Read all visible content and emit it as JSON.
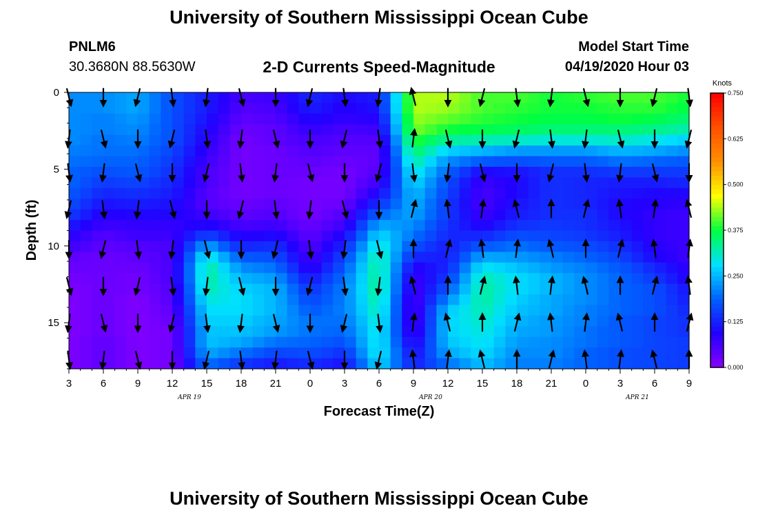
{
  "header": {
    "title_top": "University of Southern Mississippi Ocean Cube",
    "station_id": "PNLM6",
    "station_coords": "30.3680N 88.5630W",
    "plot_title": "2-D Currents Speed-Magnitude",
    "model_label": "Model Start Time",
    "model_time": "04/19/2020 Hour 03",
    "title_bottom": "University of Southern Mississippi Ocean Cube"
  },
  "chart_data": {
    "type": "heatmap",
    "title": "2-D Currents Speed-Magnitude",
    "xlabel": "Forecast Time(Z)",
    "ylabel": "Depth (ft)",
    "x_tick_labels": [
      "3",
      "6",
      "9",
      "12",
      "15",
      "18",
      "21",
      "0",
      "3",
      "6",
      "9",
      "12",
      "15",
      "18",
      "21",
      "0",
      "3",
      "6",
      "9"
    ],
    "date_labels": [
      {
        "text": "APR 19",
        "at_tick": 3.5
      },
      {
        "text": "APR 20",
        "at_tick": 10.5
      },
      {
        "text": "APR 21",
        "at_tick": 16.5
      }
    ],
    "y_ticks": [
      0,
      5,
      10,
      15
    ],
    "ylim": [
      0,
      18
    ],
    "y_inverted": true,
    "x_range_hours": [
      0,
      54
    ],
    "colorbar": {
      "label": "Knots",
      "ticks": [
        "0.000",
        "0.125",
        "0.250",
        "0.375",
        "0.500",
        "0.625",
        "0.750"
      ],
      "range": [
        0,
        0.75
      ],
      "colors": [
        "#8a00ff",
        "#2200ff",
        "#0060ff",
        "#00e0ff",
        "#00ff40",
        "#ffff00",
        "#ff9000",
        "#ff5000",
        "#ff0000"
      ]
    },
    "depths_ft": [
      0.4,
      1.1,
      1.8,
      2.5,
      3.2,
      3.9,
      4.6,
      5.3,
      6.0,
      6.7,
      7.4,
      8.1,
      8.8,
      9.5,
      10.2,
      10.9,
      11.6,
      12.3,
      13.0,
      13.7,
      14.4,
      15.1,
      15.8,
      16.5,
      17.2,
      17.9
    ],
    "profile_hours": [
      0,
      3,
      6,
      9,
      12,
      15,
      18,
      21,
      24,
      27,
      30,
      33,
      36,
      39,
      42,
      45,
      48,
      51,
      54
    ],
    "profiles": [
      [
        0.22,
        0.22,
        0.22,
        0.22,
        0.22,
        0.21,
        0.2,
        0.19,
        0.19,
        0.18,
        0.17,
        0.15,
        0.12,
        0.09,
        0.07,
        0.04,
        0.03,
        0.02,
        0.01,
        0.01,
        0.01,
        0.01,
        0.01,
        0.01,
        0.01,
        0.01
      ],
      [
        0.22,
        0.22,
        0.21,
        0.21,
        0.2,
        0.2,
        0.19,
        0.17,
        0.15,
        0.13,
        0.11,
        0.09,
        0.07,
        0.05,
        0.04,
        0.03,
        0.03,
        0.03,
        0.03,
        0.03,
        0.03,
        0.03,
        0.03,
        0.04,
        0.04,
        0.04
      ],
      [
        0.24,
        0.24,
        0.23,
        0.22,
        0.21,
        0.2,
        0.19,
        0.18,
        0.16,
        0.14,
        0.12,
        0.1,
        0.08,
        0.07,
        0.05,
        0.04,
        0.03,
        0.02,
        0.02,
        0.01,
        0.01,
        0.01,
        0.01,
        0.01,
        0.01,
        0.01
      ],
      [
        0.17,
        0.17,
        0.17,
        0.17,
        0.17,
        0.16,
        0.15,
        0.14,
        0.13,
        0.12,
        0.11,
        0.1,
        0.08,
        0.07,
        0.06,
        0.06,
        0.06,
        0.06,
        0.05,
        0.05,
        0.04,
        0.03,
        0.02,
        0.02,
        0.02,
        0.02
      ],
      [
        0.12,
        0.12,
        0.11,
        0.1,
        0.09,
        0.08,
        0.07,
        0.06,
        0.06,
        0.05,
        0.05,
        0.07,
        0.1,
        0.16,
        0.24,
        0.3,
        0.33,
        0.33,
        0.32,
        0.3,
        0.28,
        0.27,
        0.26,
        0.26,
        0.24,
        0.2
      ],
      [
        0.06,
        0.05,
        0.04,
        0.03,
        0.02,
        0.02,
        0.02,
        0.02,
        0.02,
        0.02,
        0.03,
        0.04,
        0.06,
        0.09,
        0.13,
        0.18,
        0.22,
        0.25,
        0.27,
        0.28,
        0.28,
        0.27,
        0.26,
        0.24,
        0.2,
        0.15
      ],
      [
        0.07,
        0.06,
        0.05,
        0.04,
        0.04,
        0.03,
        0.03,
        0.03,
        0.03,
        0.03,
        0.04,
        0.05,
        0.07,
        0.1,
        0.14,
        0.17,
        0.2,
        0.23,
        0.25,
        0.25,
        0.25,
        0.24,
        0.23,
        0.2,
        0.16,
        0.12
      ],
      [
        0.13,
        0.12,
        0.1,
        0.08,
        0.06,
        0.05,
        0.04,
        0.03,
        0.02,
        0.02,
        0.02,
        0.02,
        0.03,
        0.04,
        0.05,
        0.06,
        0.08,
        0.11,
        0.14,
        0.16,
        0.18,
        0.2,
        0.2,
        0.19,
        0.17,
        0.14
      ],
      [
        0.1,
        0.09,
        0.08,
        0.06,
        0.05,
        0.04,
        0.03,
        0.02,
        0.02,
        0.02,
        0.03,
        0.05,
        0.07,
        0.1,
        0.13,
        0.16,
        0.18,
        0.2,
        0.21,
        0.21,
        0.21,
        0.2,
        0.19,
        0.17,
        0.14,
        0.11
      ],
      [
        0.12,
        0.11,
        0.09,
        0.07,
        0.05,
        0.04,
        0.04,
        0.05,
        0.07,
        0.1,
        0.14,
        0.19,
        0.24,
        0.28,
        0.31,
        0.33,
        0.34,
        0.34,
        0.34,
        0.33,
        0.32,
        0.31,
        0.3,
        0.3,
        0.3,
        0.28
      ],
      [
        0.44,
        0.44,
        0.43,
        0.42,
        0.39,
        0.36,
        0.33,
        0.3,
        0.28,
        0.26,
        0.25,
        0.24,
        0.22,
        0.2,
        0.17,
        0.13,
        0.09,
        0.07,
        0.06,
        0.05,
        0.05,
        0.05,
        0.06,
        0.08,
        0.1,
        0.12
      ],
      [
        0.44,
        0.43,
        0.41,
        0.38,
        0.33,
        0.27,
        0.22,
        0.19,
        0.17,
        0.16,
        0.15,
        0.15,
        0.14,
        0.13,
        0.12,
        0.12,
        0.13,
        0.15,
        0.18,
        0.22,
        0.26,
        0.27,
        0.27,
        0.26,
        0.24,
        0.2
      ],
      [
        0.4,
        0.4,
        0.39,
        0.37,
        0.32,
        0.25,
        0.18,
        0.1,
        0.07,
        0.06,
        0.06,
        0.07,
        0.09,
        0.13,
        0.18,
        0.24,
        0.29,
        0.32,
        0.33,
        0.33,
        0.32,
        0.31,
        0.3,
        0.29,
        0.28,
        0.26
      ],
      [
        0.4,
        0.39,
        0.38,
        0.36,
        0.31,
        0.23,
        0.17,
        0.11,
        0.1,
        0.1,
        0.11,
        0.12,
        0.14,
        0.17,
        0.2,
        0.23,
        0.26,
        0.28,
        0.28,
        0.27,
        0.26,
        0.25,
        0.24,
        0.23,
        0.22,
        0.21
      ],
      [
        0.38,
        0.38,
        0.37,
        0.35,
        0.3,
        0.23,
        0.18,
        0.14,
        0.14,
        0.14,
        0.14,
        0.14,
        0.15,
        0.16,
        0.18,
        0.21,
        0.23,
        0.25,
        0.25,
        0.24,
        0.24,
        0.23,
        0.23,
        0.22,
        0.22,
        0.21
      ],
      [
        0.39,
        0.38,
        0.37,
        0.35,
        0.3,
        0.23,
        0.18,
        0.14,
        0.13,
        0.13,
        0.13,
        0.14,
        0.14,
        0.15,
        0.17,
        0.19,
        0.21,
        0.22,
        0.22,
        0.22,
        0.21,
        0.21,
        0.2,
        0.2,
        0.19,
        0.19
      ],
      [
        0.4,
        0.39,
        0.38,
        0.35,
        0.31,
        0.25,
        0.2,
        0.15,
        0.12,
        0.11,
        0.1,
        0.1,
        0.11,
        0.12,
        0.14,
        0.16,
        0.18,
        0.19,
        0.19,
        0.19,
        0.19,
        0.18,
        0.18,
        0.18,
        0.17,
        0.17
      ],
      [
        0.4,
        0.39,
        0.37,
        0.34,
        0.29,
        0.24,
        0.19,
        0.15,
        0.12,
        0.1,
        0.09,
        0.08,
        0.08,
        0.08,
        0.09,
        0.1,
        0.13,
        0.15,
        0.17,
        0.17,
        0.17,
        0.16,
        0.16,
        0.16,
        0.16,
        0.16
      ],
      [
        0.38,
        0.37,
        0.35,
        0.32,
        0.27,
        0.22,
        0.18,
        0.15,
        0.13,
        0.1,
        0.08,
        0.07,
        0.07,
        0.07,
        0.07,
        0.07,
        0.08,
        0.09,
        0.11,
        0.12,
        0.13,
        0.14,
        0.14,
        0.15,
        0.15,
        0.15
      ]
    ]
  }
}
